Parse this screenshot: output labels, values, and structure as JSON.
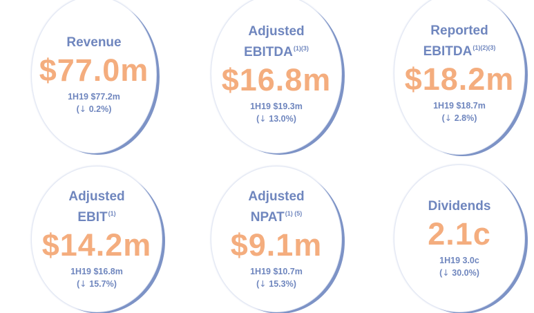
{
  "metrics": [
    {
      "label_line1": "",
      "label_line2": "Revenue",
      "notes": "",
      "value": "$77.0m",
      "prior": "1H19 $77.2m",
      "arrow": "↓",
      "change": "0.2%"
    },
    {
      "label_line1": "Adjusted",
      "label_line2": "EBITDA",
      "notes": "(1)(3)",
      "value": "$16.8m",
      "prior": "1H19 $19.3m",
      "arrow": "↓",
      "change": "13.0%"
    },
    {
      "label_line1": "Reported",
      "label_line2": "EBITDA",
      "notes": "(1)(2)(3)",
      "value": "$18.2m",
      "prior": "1H19 $18.7m",
      "arrow": "↓",
      "change": "2.8%"
    },
    {
      "label_line1": "Adjusted",
      "label_line2": "EBIT",
      "notes": "(1)",
      "value": "$14.2m",
      "prior": "1H19 $16.8m",
      "arrow": "↓",
      "change": "15.7%"
    },
    {
      "label_line1": "Adjusted",
      "label_line2": "NPAT",
      "notes": "(1) (5)",
      "value": "$9.1m",
      "prior": "1H19 $10.7m",
      "arrow": "↓",
      "change": "15.3%"
    },
    {
      "label_line1": "",
      "label_line2": "Dividends",
      "notes": "",
      "value": "2.1c",
      "prior": "1H19 3.0c",
      "arrow": "↓",
      "change": "30.0%"
    }
  ],
  "colors": {
    "label": "#6f86be",
    "value": "#f4ad7e",
    "ring": "#7d93c6"
  }
}
